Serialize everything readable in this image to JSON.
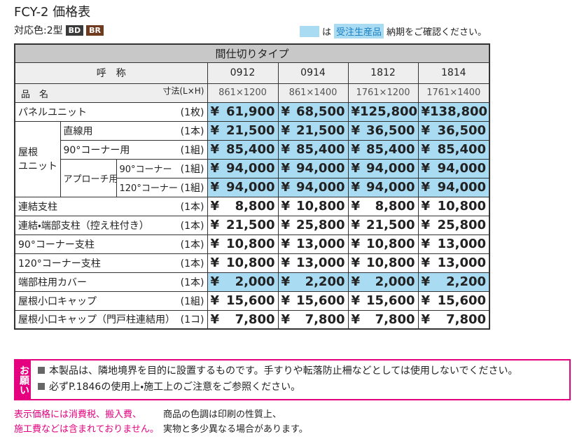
{
  "header": {
    "title": "FCY-2 価格表",
    "colors_label": "対応色:2型",
    "colors": [
      "BD",
      "BR"
    ],
    "legend": {
      "marker_text": "は",
      "badge": "受注生産品",
      "text": "納期をご確認ください。"
    }
  },
  "table": {
    "type_header": "間仕切りタイプ",
    "code_label": "呼　称",
    "name_label": "品　名",
    "size_label": "寸法(L×H)",
    "codes": [
      "0912",
      "0914",
      "1812",
      "1814"
    ],
    "sizes": [
      "861×1200",
      "861×1400",
      "1761×1200",
      "1761×1400"
    ],
    "currency": "¥",
    "roof_group": [
      "屋根",
      "ユニット"
    ],
    "approach_label": "アプローチ用",
    "rows": [
      {
        "name": "パネルユニット",
        "unit": "(1枚)",
        "prices": [
          "61,900",
          "68,500",
          "125,800",
          "138,800"
        ],
        "made_to_order": true
      },
      {
        "name": "直線用",
        "unit": "(1本)",
        "prices": [
          "21,500",
          "21,500",
          "36,500",
          "36,500"
        ],
        "made_to_order": true
      },
      {
        "name": "90°コーナー用",
        "unit": "(1組)",
        "prices": [
          "85,400",
          "85,400",
          "85,400",
          "85,400"
        ],
        "made_to_order": true
      },
      {
        "name": "90°コーナー",
        "unit": "(1組)",
        "prices": [
          "94,000",
          "94,000",
          "94,000",
          "94,000"
        ],
        "made_to_order": true
      },
      {
        "name": "120°コーナー",
        "unit": "(1組)",
        "prices": [
          "94,000",
          "94,000",
          "94,000",
          "94,000"
        ],
        "made_to_order": true
      },
      {
        "name": "連結支柱",
        "unit": "(1本)",
        "prices": [
          "8,800",
          "10,800",
          "8,800",
          "10,800"
        ],
        "made_to_order": false
      },
      {
        "name": "連結・端部支柱（控え柱付き）",
        "unit": "(1本)",
        "prices": [
          "21,500",
          "25,800",
          "21,500",
          "25,800"
        ],
        "made_to_order": false
      },
      {
        "name": "90°コーナー支柱",
        "unit": "(1本)",
        "prices": [
          "10,800",
          "13,000",
          "10,800",
          "13,000"
        ],
        "made_to_order": false
      },
      {
        "name": "120°コーナー支柱",
        "unit": "(1本)",
        "prices": [
          "10,800",
          "13,000",
          "10,800",
          "13,000"
        ],
        "made_to_order": false
      },
      {
        "name": "端部柱用カバー",
        "unit": "(1本)",
        "prices": [
          "2,000",
          "2,200",
          "2,000",
          "2,200"
        ],
        "made_to_order": true
      },
      {
        "name": "屋根小口キャップ",
        "unit": "(1組)",
        "prices": [
          "15,600",
          "15,600",
          "15,600",
          "15,600"
        ],
        "made_to_order": false
      },
      {
        "name": "屋根小口キャップ（門戸柱連結用）",
        "unit": "(1コ)",
        "prices": [
          "7,800",
          "7,800",
          "7,800",
          "7,800"
        ],
        "made_to_order": false
      }
    ]
  },
  "notice": {
    "label": "お願い",
    "items": [
      "本製品は、隣地境界を目的に設置するものです。手すりや転落防止柵などとしては使用しないでください。",
      "必ずP.1846の使用上・施工上のご注意をご参照ください。"
    ]
  },
  "footnotes": {
    "price_note": [
      "表示価格には消費税、搬入費、",
      "施工費などは含まれておりません。"
    ],
    "color_note": [
      "商品の色調は印刷の性質上、",
      "実物と多少異なる場合があります。"
    ]
  }
}
